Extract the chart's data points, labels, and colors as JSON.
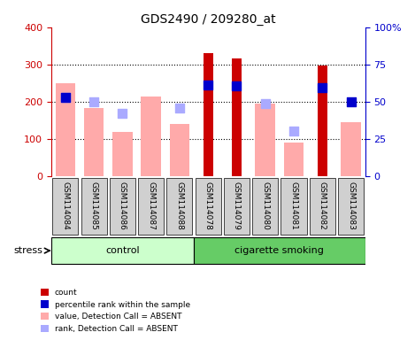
{
  "title": "GDS2490 / 209280_at",
  "samples": [
    "GSM114084",
    "GSM114085",
    "GSM114086",
    "GSM114087",
    "GSM114088",
    "GSM114078",
    "GSM114079",
    "GSM114080",
    "GSM114081",
    "GSM114082",
    "GSM114083"
  ],
  "groups": [
    "control",
    "control",
    "control",
    "control",
    "control",
    "cigarette smoking",
    "cigarette smoking",
    "cigarette smoking",
    "cigarette smoking",
    "cigarette smoking",
    "cigarette smoking"
  ],
  "count_values": [
    null,
    null,
    null,
    null,
    null,
    332,
    318,
    null,
    null,
    298,
    null
  ],
  "rank_values": [
    213,
    null,
    null,
    null,
    null,
    247,
    243,
    null,
    null,
    240,
    200
  ],
  "absent_value": [
    250,
    185,
    120,
    216,
    140,
    null,
    null,
    195,
    90,
    null,
    147
  ],
  "absent_rank": [
    213,
    200,
    170,
    null,
    183,
    null,
    null,
    197,
    123,
    null,
    null
  ],
  "ylim_left": [
    0,
    400
  ],
  "ylim_right": [
    0,
    100
  ],
  "yticks_left": [
    0,
    100,
    200,
    300,
    400
  ],
  "yticks_right": [
    0,
    25,
    50,
    75,
    100
  ],
  "ytick_labels_left": [
    "0",
    "100",
    "200",
    "300",
    "400"
  ],
  "ytick_labels_right": [
    "0",
    "25",
    "50",
    "75",
    "100%"
  ],
  "color_count": "#cc0000",
  "color_rank": "#0000cc",
  "color_absent_value": "#ffaaaa",
  "color_absent_rank": "#aaaaff",
  "color_control_bg": "#ccffcc",
  "color_smoking_bg": "#66cc66",
  "color_axis_left": "#cc0000",
  "color_axis_right": "#0000cc",
  "bar_width": 0.35,
  "legend_items": [
    "count",
    "percentile rank within the sample",
    "value, Detection Call = ABSENT",
    "rank, Detection Call = ABSENT"
  ],
  "legend_colors": [
    "#cc0000",
    "#0000cc",
    "#ffaaaa",
    "#aaaaff"
  ],
  "legend_markers": [
    "s",
    "s",
    "s",
    "s"
  ]
}
